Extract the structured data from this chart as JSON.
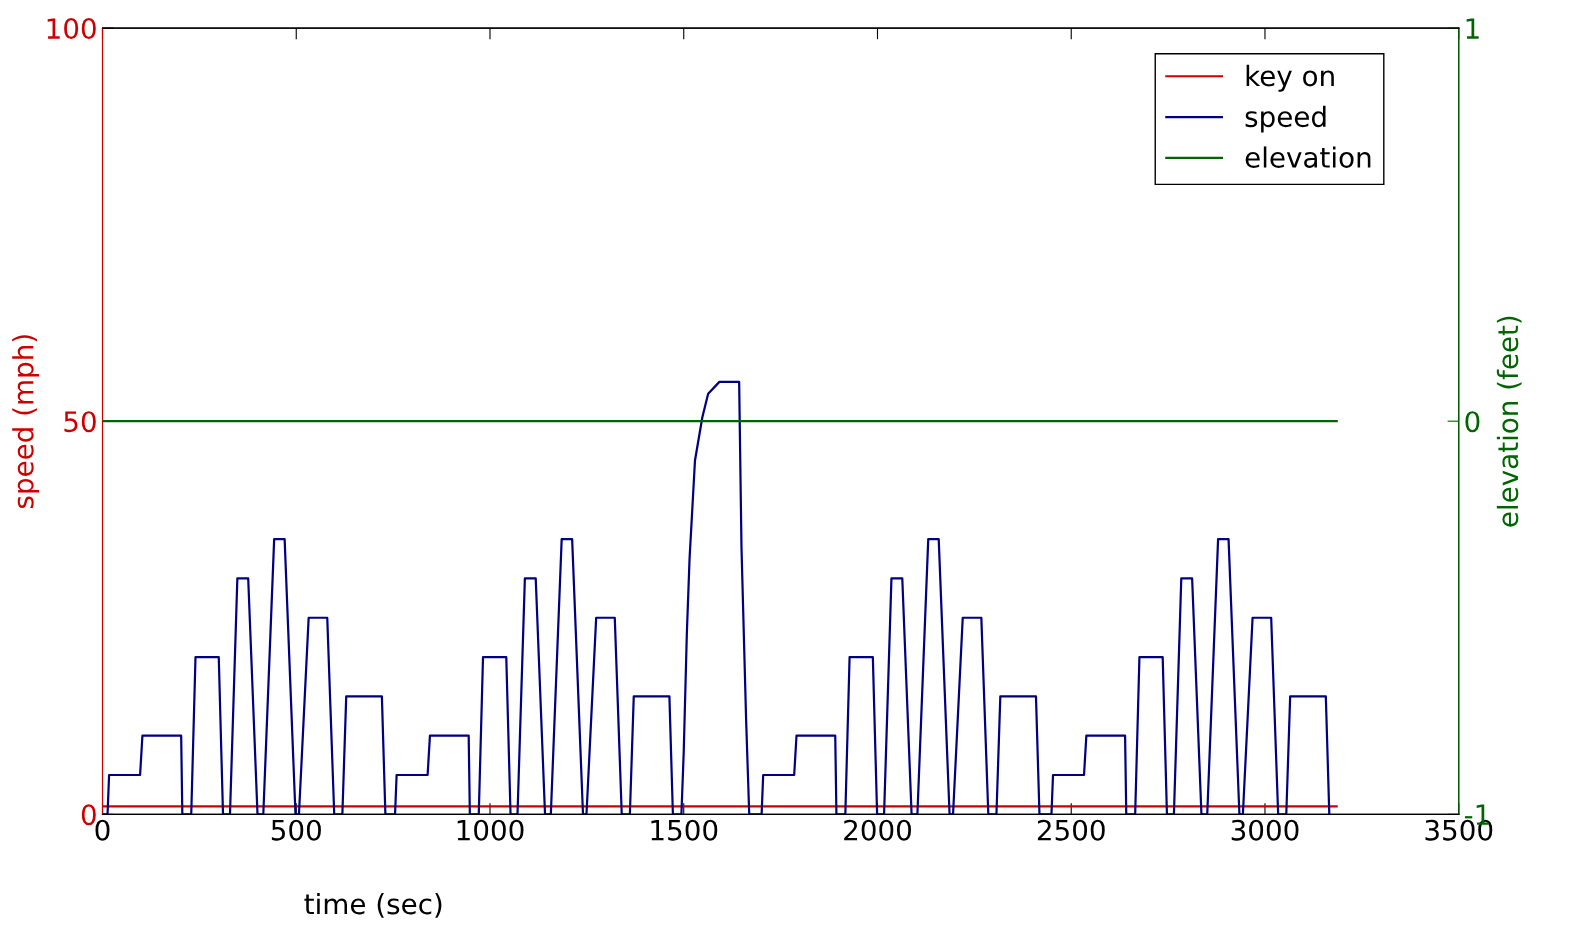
{
  "chart_data": {
    "type": "line",
    "xlabel": "time (sec)",
    "ylabel": "speed (mph)",
    "y2label": "elevation (feet)",
    "xlim": [
      0,
      3500
    ],
    "xticks": [
      0,
      500,
      1000,
      1500,
      2000,
      2500,
      3000,
      3500
    ],
    "ylim": [
      0,
      100
    ],
    "yticks": [
      0,
      50,
      100
    ],
    "y2lim": [
      -1,
      1
    ],
    "y2ticks": [
      -1,
      0,
      1
    ],
    "legend": "top right",
    "grid": false,
    "marker": "none",
    "line_style": "solid",
    "series": [
      {
        "name": "key on",
        "color": "#cc0000",
        "x": [
          0,
          3185
        ],
        "values": [
          1,
          1
        ]
      },
      {
        "name": "speed",
        "color": "#000080",
        "x": [
          0,
          13,
          17,
          97,
          103,
          203,
          206,
          229,
          240,
          300,
          311,
          329,
          348,
          376,
          400,
          415,
          443,
          470,
          498,
          507,
          532,
          580,
          598,
          619,
          629,
          721,
          730,
          755,
          759,
          839,
          845,
          945,
          948,
          971,
          982,
          1042,
          1053,
          1071,
          1090,
          1118,
          1142,
          1157,
          1185,
          1212,
          1240,
          1249,
          1274,
          1322,
          1340,
          1361,
          1371,
          1463,
          1472,
          1494,
          1500,
          1508,
          1515,
          1529,
          1548,
          1563,
          1592,
          1643,
          1649,
          1661,
          1669,
          1701,
          1705,
          1785,
          1791,
          1891,
          1894,
          1917,
          1928,
          1988,
          1999,
          2017,
          2036,
          2064,
          2088,
          2103,
          2131,
          2158,
          2186,
          2195,
          2220,
          2268,
          2286,
          2307,
          2317,
          2409,
          2418,
          2449,
          2453,
          2533,
          2539,
          2639,
          2642,
          2665,
          2676,
          2736,
          2747,
          2765,
          2784,
          2812,
          2836,
          2851,
          2879,
          2906,
          2934,
          2943,
          2968,
          3016,
          3034,
          3055,
          3065,
          3157,
          3166
        ],
        "values": [
          0,
          0,
          5,
          5,
          10,
          10,
          0,
          0,
          20,
          20,
          0,
          0,
          30,
          30,
          0,
          0,
          35,
          35,
          0,
          0,
          25,
          25,
          0,
          0,
          15,
          15,
          0,
          0,
          5,
          5,
          10,
          10,
          0,
          0,
          20,
          20,
          0,
          0,
          30,
          30,
          0,
          0,
          35,
          35,
          0,
          0,
          25,
          25,
          0,
          0,
          15,
          15,
          0,
          0,
          8,
          23,
          32.5,
          45,
          50.5,
          53.5,
          55,
          55,
          34,
          12,
          0,
          0,
          5,
          5,
          10,
          10,
          0,
          0,
          20,
          20,
          0,
          0,
          30,
          30,
          0,
          0,
          35,
          35,
          0,
          0,
          25,
          25,
          0,
          0,
          15,
          15,
          0,
          0,
          5,
          5,
          10,
          10,
          0,
          0,
          20,
          20,
          0,
          0,
          30,
          30,
          0,
          0,
          35,
          35,
          0,
          0,
          25,
          25,
          0,
          0,
          15,
          15,
          0
        ]
      },
      {
        "name": "elevation",
        "color": "#006400",
        "axis": "y2",
        "x": [
          0,
          3185
        ],
        "values": [
          0,
          0
        ]
      }
    ]
  }
}
